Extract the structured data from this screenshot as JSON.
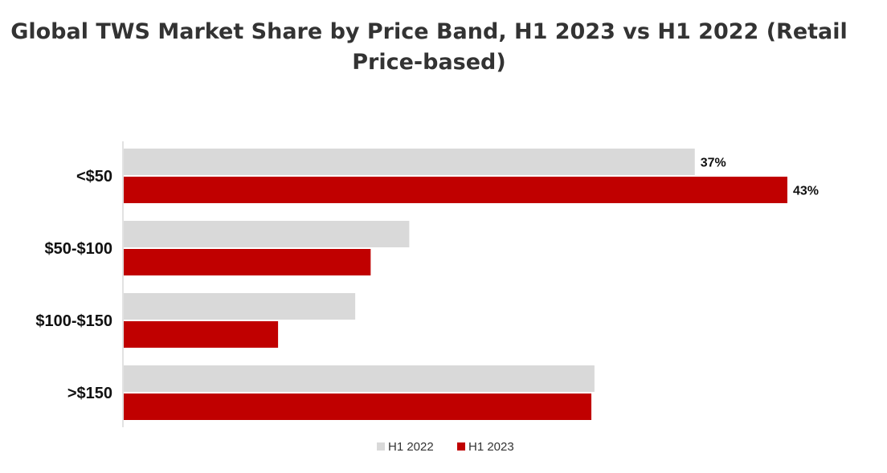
{
  "chart_data": {
    "type": "bar",
    "orientation": "horizontal",
    "title": "Global TWS Market Share by Price Band, H1 2023 vs H1 2022 (Retail Price-based)",
    "title_lines": [
      "Global TWS Market Share by Price Band, H1 2023 vs H1 2022 (Retail",
      "Price-based)"
    ],
    "categories": [
      "<$50",
      "$50-$100",
      "$100-$150",
      ">$150"
    ],
    "series": [
      {
        "name": "H1 2022",
        "color": "#d9d9d9",
        "values": [
          37,
          18.5,
          15,
          30.5
        ],
        "labels": [
          "37%",
          "",
          "",
          ""
        ]
      },
      {
        "name": "H1 2023",
        "color": "#c00000",
        "values": [
          43,
          16,
          10,
          30.3
        ],
        "labels": [
          "43%",
          "",
          "",
          ""
        ]
      }
    ],
    "xlim": [
      0,
      45
    ],
    "grid": false,
    "legend_position": "bottom"
  }
}
